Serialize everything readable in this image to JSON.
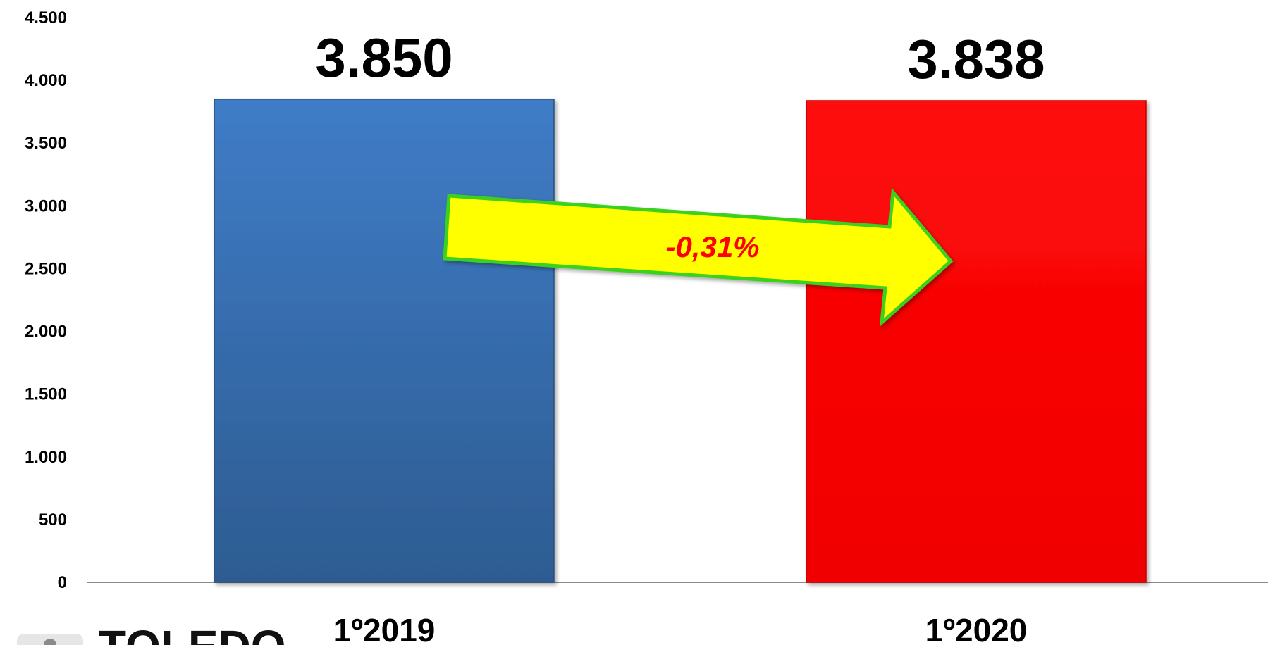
{
  "chart_data": {
    "type": "bar",
    "categories": [
      "1º2019",
      "1º2020"
    ],
    "values": [
      3850,
      3838
    ],
    "value_labels": [
      "3.850",
      "3.838"
    ],
    "ylim": [
      0,
      4500
    ],
    "y_ticks": [
      0,
      500,
      1000,
      1500,
      2000,
      2500,
      3000,
      3500,
      4000,
      4500
    ],
    "y_tick_labels": [
      "0",
      "500",
      "1.000",
      "1.500",
      "2.000",
      "2.500",
      "3.000",
      "3.500",
      "4.000",
      "4.500"
    ],
    "grid": false,
    "legend": "none",
    "colors": [
      "#3a72b8",
      "#ff0505"
    ],
    "annotation": {
      "text": "-0,31%",
      "arrow_fill": "#ffff00",
      "arrow_stroke": "#3ad11e",
      "text_color": "#ff0000"
    }
  },
  "logo": {
    "text": "TOLEDO"
  }
}
